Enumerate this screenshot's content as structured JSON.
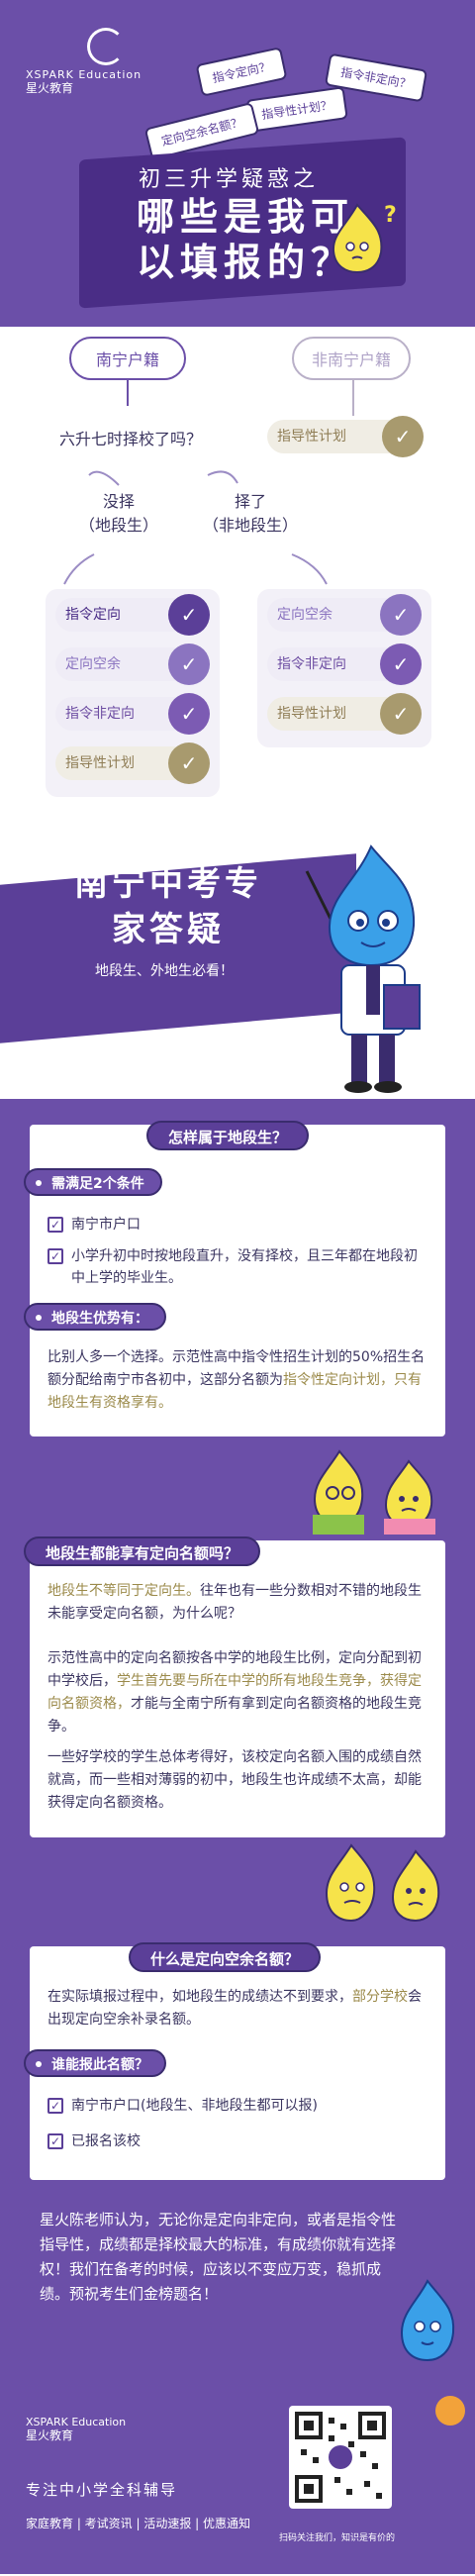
{
  "brand": {
    "en": "XSPARK Education",
    "cn": "星火教育"
  },
  "hero": {
    "tags": [
      "指令定向？",
      "指令非定向？",
      "指导性计划？",
      "定向空余名额？"
    ],
    "title_small": "初三升学疑惑之",
    "title_large": "哪些是我可以填报的？"
  },
  "tree": {
    "local": "南宁户籍",
    "nonlocal": "非南宁户籍",
    "question": "六升七时择校了吗？",
    "no_choice": "没择\n（地段生）",
    "chose": "择了\n（非地段生）",
    "nonlocal_option": "指导性计划",
    "left_options": [
      "指令定向",
      "定向空余",
      "指令非定向",
      "指导性计划"
    ],
    "right_options": [
      "定向空余",
      "指令非定向",
      "指导性计划"
    ],
    "check_glyph": "✓"
  },
  "expert": {
    "title": "南宁中考专家答疑",
    "subtitle": "地段生、外地生必看！"
  },
  "section1": {
    "head": "怎样属于地段生？",
    "cond_head": "需满足2个条件",
    "conditions": [
      "南宁市户口",
      "小学升初中时按地段直升，没有择校，且三年都在地段初中上学的毕业生。"
    ],
    "adv_head": "地段生优势有：",
    "adv_text_a": "比别人多一个选择。示范性高中指令性招生计划的50%招生名额分配给南宁市各初中，这部分名额为",
    "adv_text_hl": "指令性定向计划，只有地段生有资格享有。"
  },
  "section2": {
    "head": "地段生都能享有定向名额吗？",
    "p1_hl": "地段生不等同于定向生。",
    "p1_rest": "往年也有一些分数相对不错的地段生未能享受定向名额，为什么呢？",
    "p2_a": "示范性高中的定向名额按各中学的地段生比例，定向分配到初中学校后，",
    "p2_hl": "学生首先要与所在中学的所有地段生竞争，获得定向名额资格，",
    "p2_b": "才能与全南宁所有拿到定向名额资格的地段生竞争。",
    "p3": "一些好学校的学生总体考得好，该校定向名额入围的成绩自然就高，而一些相对薄弱的初中，地段生也许成绩不太高，却能获得定向名额资格。"
  },
  "section3": {
    "head": "什么是定向空余名额？",
    "p1": "在实际填报过程中，如地段生的成绩达不到要求，",
    "p1_hl": "部分学校",
    "p1_rest": "会出现定向空余补录名额。",
    "who_head": "谁能报此名额？",
    "who": [
      "南宁市户口(地段生、非地段生都可以报)",
      "已报名该校"
    ]
  },
  "footer": {
    "message": "星火陈老师认为，无论你是定向非定向，或者是指令性指导性，成绩都是择校最大的标准，有成绩你就有选择权！我们在备考的时候，应该以不变应万变，稳抓成绩。预祝考生们金榜题名！",
    "slogan": "专注中小学全科辅导",
    "links": "家庭教育 | 考试资讯 | 活动速报 | 优惠通知",
    "qr_caption": "扫码关注我们，知识是有价的"
  }
}
